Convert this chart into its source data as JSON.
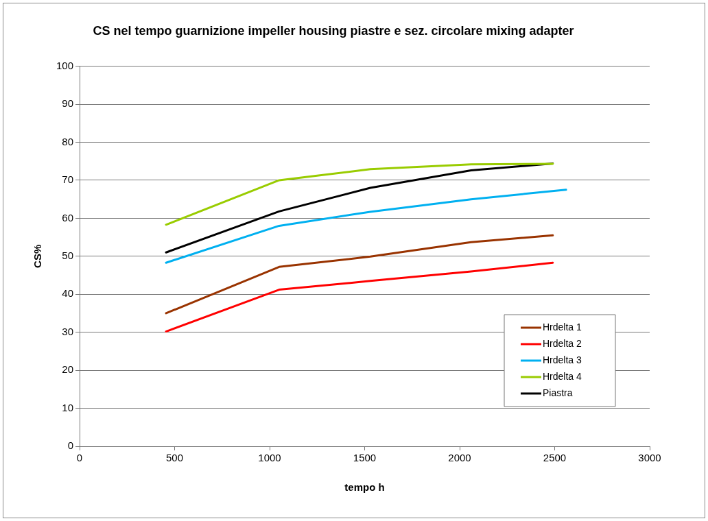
{
  "chart_data": {
    "type": "line",
    "title": "CS nel tempo guarnizione impeller housing piastre e sez. circolare mixing adapter",
    "xlabel": "tempo h",
    "ylabel": "CS%",
    "xlim": [
      0,
      3000
    ],
    "xticks": [
      0,
      500,
      1000,
      1500,
      2000,
      2500,
      3000
    ],
    "ylim": [
      0,
      100
    ],
    "yticks": [
      0,
      10,
      20,
      30,
      40,
      50,
      60,
      70,
      80,
      90,
      100
    ],
    "grid": "y",
    "legend": "bottom right",
    "marker": "none",
    "line_style": "solid",
    "series": [
      {
        "name": "Hrdelta 1",
        "color": "#993300",
        "x": [
          455,
          1050,
          1530,
          2060,
          2490
        ],
        "values": [
          35,
          47.2,
          49.9,
          53.7,
          55.5
        ]
      },
      {
        "name": "Hrdelta 2",
        "color": "#ff0000",
        "x": [
          455,
          1050,
          1530,
          2060,
          2490
        ],
        "values": [
          30.2,
          41.2,
          43.5,
          46,
          48.3
        ]
      },
      {
        "name": "Hrdelta 3",
        "color": "#00b0f0",
        "x": [
          455,
          1050,
          1530,
          2060,
          2560
        ],
        "values": [
          48.3,
          58,
          61.7,
          65,
          67.5
        ]
      },
      {
        "name": "Hrdelta 4",
        "color": "#99cc00",
        "x": [
          455,
          1050,
          1530,
          2060,
          2490
        ],
        "values": [
          58.3,
          70,
          72.9,
          74.2,
          74.3
        ]
      },
      {
        "name": "Piastra",
        "color": "#000000",
        "x": [
          455,
          1050,
          1530,
          2060,
          2490
        ],
        "values": [
          51,
          61.8,
          68,
          72.6,
          74.4
        ]
      }
    ]
  }
}
